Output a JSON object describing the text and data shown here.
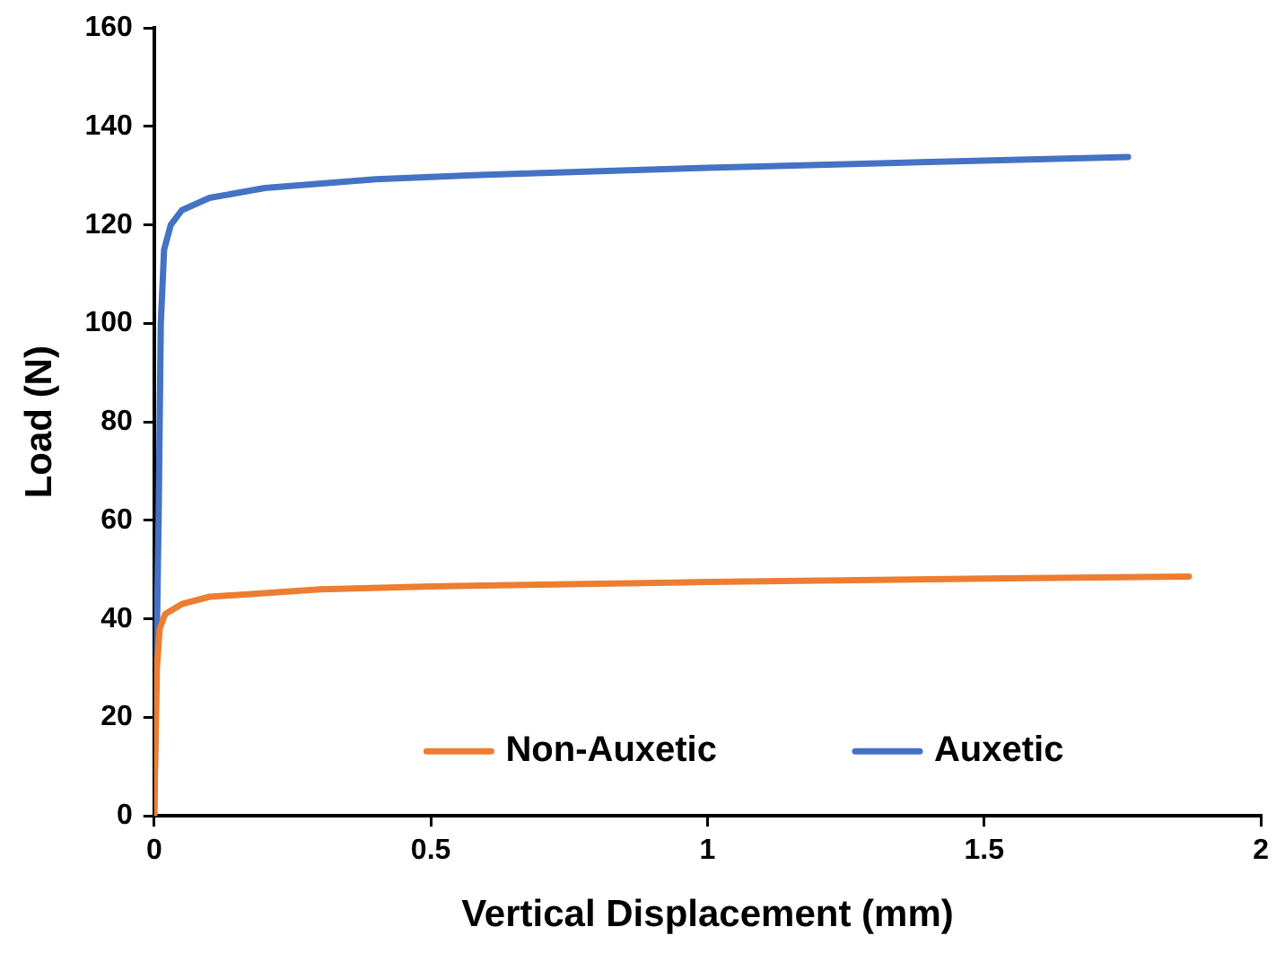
{
  "chart_data": {
    "type": "line",
    "xlabel": "Vertical Displacement (mm)",
    "ylabel": "Load (N)",
    "xlim": [
      0,
      2
    ],
    "xticks": [
      0,
      0.5,
      1,
      1.5,
      2
    ],
    "ylim": [
      0,
      160
    ],
    "yticks": [
      0,
      20,
      40,
      60,
      80,
      100,
      120,
      140,
      160
    ],
    "grid": false,
    "legend": "bottom",
    "marker": "none",
    "line_style": "solid",
    "series": [
      {
        "name": "Non-Auxetic",
        "color": "#ed7d31",
        "x": [
          0,
          0.005,
          0.01,
          0.02,
          0.05,
          0.1,
          0.3,
          0.5,
          1.0,
          1.5,
          1.87
        ],
        "values": [
          0,
          30,
          38,
          41,
          43,
          44.5,
          46,
          46.6,
          47.5,
          48.2,
          48.6
        ]
      },
      {
        "name": "Auxetic",
        "color": "#4472c4",
        "x": [
          0,
          0.008,
          0.012,
          0.018,
          0.03,
          0.05,
          0.1,
          0.2,
          0.4,
          0.6,
          1.0,
          1.4,
          1.76
        ],
        "values": [
          0,
          60,
          100,
          115,
          120,
          123,
          125.5,
          127.5,
          129.3,
          130.2,
          131.6,
          132.8,
          133.8
        ]
      }
    ]
  }
}
